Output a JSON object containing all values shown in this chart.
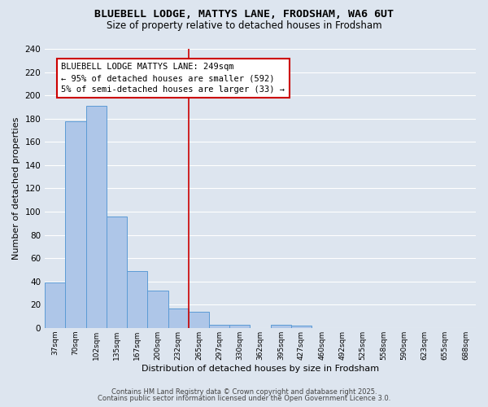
{
  "title": "BLUEBELL LODGE, MATTYS LANE, FRODSHAM, WA6 6UT",
  "subtitle": "Size of property relative to detached houses in Frodsham",
  "xlabel": "Distribution of detached houses by size in Frodsham",
  "ylabel": "Number of detached properties",
  "bar_color": "#aec6e8",
  "bar_edge_color": "#5b9bd5",
  "categories": [
    "37sqm",
    "70sqm",
    "102sqm",
    "135sqm",
    "167sqm",
    "200sqm",
    "232sqm",
    "265sqm",
    "297sqm",
    "330sqm",
    "362sqm",
    "395sqm",
    "427sqm",
    "460sqm",
    "492sqm",
    "525sqm",
    "558sqm",
    "590sqm",
    "623sqm",
    "655sqm",
    "688sqm"
  ],
  "values": [
    39,
    178,
    191,
    96,
    49,
    32,
    17,
    14,
    3,
    3,
    0,
    3,
    2,
    0,
    0,
    0,
    0,
    0,
    0,
    0,
    0
  ],
  "vline_x": 6.5,
  "vline_color": "#cc0000",
  "annotation_line1": "BLUEBELL LODGE MATTYS LANE: 249sqm",
  "annotation_line2": "← 95% of detached houses are smaller (592)",
  "annotation_line3": "5% of semi-detached houses are larger (33) →",
  "ylim": [
    0,
    240
  ],
  "yticks": [
    0,
    20,
    40,
    60,
    80,
    100,
    120,
    140,
    160,
    180,
    200,
    220,
    240
  ],
  "background_color": "#dde5ef",
  "plot_bg_color": "#dde5ef",
  "footer1": "Contains HM Land Registry data © Crown copyright and database right 2025.",
  "footer2": "Contains public sector information licensed under the Open Government Licence 3.0.",
  "grid_color": "#ffffff",
  "title_fontsize": 9.5,
  "subtitle_fontsize": 8.5,
  "annotation_fontsize": 7.5,
  "xlabel_fontsize": 8,
  "ylabel_fontsize": 8,
  "box_border_color": "#cc0000",
  "footer_fontsize": 6
}
